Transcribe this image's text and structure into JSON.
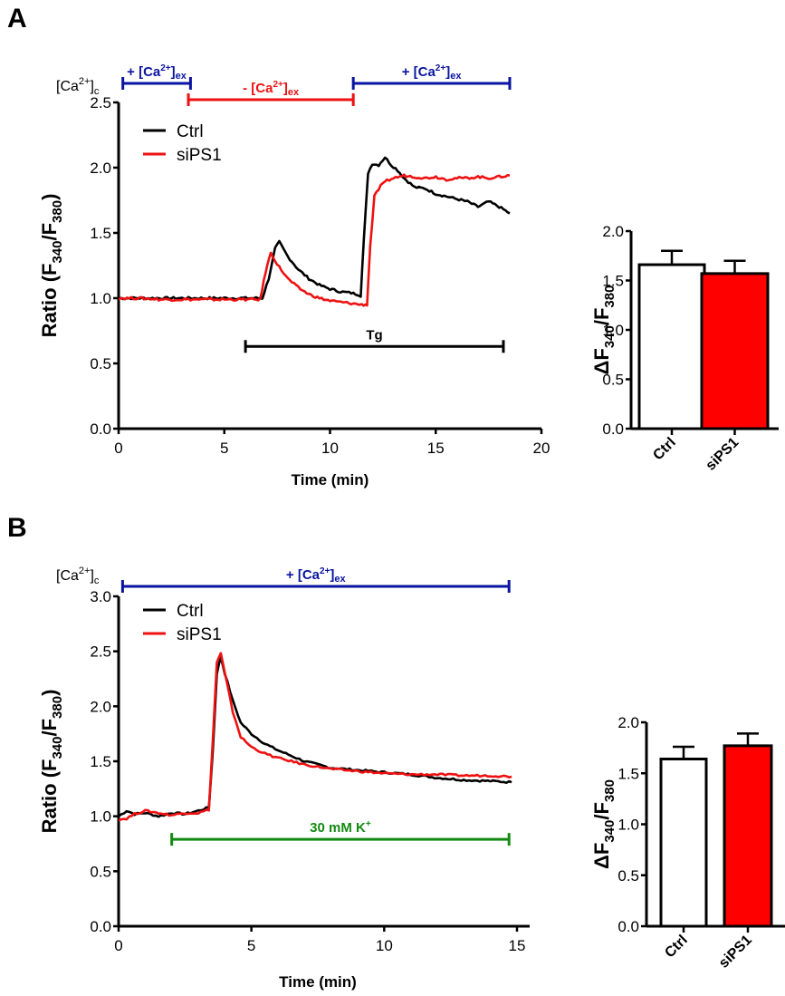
{
  "colors": {
    "ctrl": "#000000",
    "sips1": "#ee1111",
    "bar_ctrl_fill": "#ffffff",
    "bar_sips1_fill": "#ff0000",
    "ca_plus": "#0a14a0",
    "ca_minus": "#ee1111",
    "tg": "#000000",
    "k": "#138a13"
  },
  "chart_data": [
    {
      "id": "A-trace",
      "panel": "A",
      "type": "line",
      "title": "",
      "xlabel": "Time (min)",
      "ylabel": "Ratio (F340/F380)",
      "ylabel_parts": {
        "main": "Ratio (F",
        "sub1": "340",
        "mid": "/F",
        "sub2": "380",
        "end": ")"
      },
      "xlim": [
        0,
        20
      ],
      "ylim": [
        0,
        2.5
      ],
      "xticks": [
        0,
        5,
        10,
        15,
        20
      ],
      "yticks": [
        0.0,
        0.5,
        1.0,
        1.5,
        2.0,
        2.5
      ],
      "xtick_labels": [
        "0",
        "5",
        "10",
        "15",
        "20"
      ],
      "ytick_labels": [
        "0.0",
        "0.5",
        "1.0",
        "1.5",
        "2.0",
        "2.5"
      ],
      "grid": false,
      "legend": {
        "position": "top-left",
        "entries": [
          "Ctrl",
          "siPS1"
        ]
      },
      "side_label": {
        "main": "[Ca",
        "sup": "2+",
        "close": "]",
        "sub": "c"
      },
      "series": [
        {
          "name": "Ctrl",
          "color_key": "ctrl",
          "x": [
            0,
            1,
            2,
            3,
            4,
            5,
            6,
            6.8,
            7.1,
            7.4,
            7.6,
            8.0,
            8.5,
            9.0,
            9.5,
            10.0,
            10.5,
            11.0,
            11.3,
            11.45,
            11.6,
            11.8,
            12.0,
            12.3,
            12.6,
            12.9,
            13.2,
            13.5,
            14.0,
            14.5,
            15.0,
            15.5,
            16.0,
            16.5,
            17.0,
            17.5,
            18.0,
            18.5
          ],
          "y": [
            1.0,
            1.0,
            1.0,
            1.0,
            1.0,
            1.0,
            1.0,
            1.0,
            1.15,
            1.38,
            1.43,
            1.32,
            1.22,
            1.15,
            1.1,
            1.07,
            1.05,
            1.04,
            1.03,
            1.02,
            1.45,
            1.96,
            2.03,
            2.02,
            2.08,
            2.02,
            1.98,
            1.92,
            1.85,
            1.84,
            1.8,
            1.78,
            1.76,
            1.74,
            1.7,
            1.74,
            1.7,
            1.65
          ]
        },
        {
          "name": "siPS1",
          "color_key": "sips1",
          "x": [
            0,
            1,
            2,
            3,
            4,
            5,
            6,
            6.7,
            6.95,
            7.2,
            7.5,
            8.0,
            8.5,
            9.0,
            9.5,
            10.0,
            10.5,
            11.0,
            11.5,
            11.75,
            11.9,
            12.1,
            12.4,
            12.7,
            13.0,
            13.5,
            14.0,
            14.5,
            15.0,
            15.5,
            16.0,
            16.5,
            17.0,
            17.5,
            18.0,
            18.5
          ],
          "y": [
            1.0,
            1.0,
            0.99,
            0.99,
            0.99,
            0.99,
            0.99,
            0.99,
            1.2,
            1.35,
            1.26,
            1.15,
            1.08,
            1.03,
            1.0,
            0.98,
            0.97,
            0.96,
            0.95,
            0.95,
            1.4,
            1.78,
            1.86,
            1.9,
            1.92,
            1.94,
            1.93,
            1.92,
            1.93,
            1.91,
            1.92,
            1.92,
            1.93,
            1.92,
            1.93,
            1.94
          ]
        }
      ],
      "annotations": [
        {
          "id": "ca-plus-1",
          "color_key": "ca_plus",
          "x_start": 0.2,
          "x_end": 3.4,
          "row": "upper",
          "label_main": "+ [Ca",
          "label_sup": "2+",
          "label_close": "]",
          "label_sub": "ex"
        },
        {
          "id": "ca-minus",
          "color_key": "ca_minus",
          "x_start": 3.3,
          "x_end": 11.1,
          "row": "lower",
          "label_main": "- [Ca",
          "label_sup": "2+",
          "label_close": "]",
          "label_sub": "ex"
        },
        {
          "id": "ca-plus-2",
          "color_key": "ca_plus",
          "x_start": 11.1,
          "x_end": 18.5,
          "row": "upper",
          "label_main": "+ [Ca",
          "label_sup": "2+",
          "label_close": "]",
          "label_sub": "ex"
        },
        {
          "id": "tg",
          "color_key": "tg",
          "x_start": 6.0,
          "x_end": 18.2,
          "y": 0.63,
          "label_main": "Tg"
        }
      ]
    },
    {
      "id": "A-bar",
      "panel": "A",
      "type": "bar",
      "categories": [
        "Ctrl",
        "siPS1"
      ],
      "values": [
        1.66,
        1.57
      ],
      "errors": [
        0.14,
        0.13
      ],
      "fill_keys": [
        "bar_ctrl_fill",
        "bar_sips1_fill"
      ],
      "ylabel_parts": {
        "delta": "Δ",
        "main": "F",
        "sub1": "340",
        "mid": "/F",
        "sub2": "380"
      },
      "ylim": [
        0,
        2.0
      ],
      "yticks": [
        0.0,
        0.5,
        1.0,
        1.5,
        2.0
      ],
      "ytick_labels": [
        "0.0",
        "0.5",
        "1.0",
        "1.5",
        "2.0"
      ],
      "grid": false
    },
    {
      "id": "B-trace",
      "panel": "B",
      "type": "line",
      "title": "",
      "xlabel": "Time (min)",
      "ylabel": "Ratio (F340/F380)",
      "ylabel_parts": {
        "main": "Ratio (F",
        "sub1": "340",
        "mid": "/F",
        "sub2": "380",
        "end": ")"
      },
      "xlim": [
        0,
        16
      ],
      "ylim": [
        0,
        3.0
      ],
      "xticks": [
        0,
        5,
        10,
        15
      ],
      "yticks": [
        0.0,
        0.5,
        1.0,
        1.5,
        2.0,
        2.5,
        3.0
      ],
      "xtick_labels": [
        "0",
        "5",
        "10",
        "15"
      ],
      "ytick_labels": [
        "0.0",
        "0.5",
        "1.0",
        "1.5",
        "2.0",
        "2.5",
        "3.0"
      ],
      "grid": false,
      "legend": {
        "position": "top-left",
        "entries": [
          "Ctrl",
          "siPS1"
        ]
      },
      "side_label": {
        "main": "[Ca",
        "sup": "2+",
        "close": "]",
        "sub": "c"
      },
      "series": [
        {
          "name": "Ctrl",
          "color_key": "ctrl",
          "x": [
            0,
            0.3,
            0.6,
            1.0,
            1.5,
            2.0,
            2.5,
            3.0,
            3.4,
            3.55,
            3.7,
            3.85,
            4.0,
            4.3,
            4.6,
            5.0,
            5.5,
            6.0,
            6.5,
            7.0,
            7.5,
            8.0,
            8.5,
            9.0,
            9.5,
            10.0,
            11.0,
            12.0,
            13.0,
            14.0,
            14.8
          ],
          "y": [
            1.0,
            1.05,
            1.02,
            1.03,
            1.0,
            1.03,
            1.02,
            1.05,
            1.08,
            1.6,
            2.3,
            2.45,
            2.3,
            2.05,
            1.85,
            1.75,
            1.66,
            1.6,
            1.55,
            1.5,
            1.47,
            1.44,
            1.43,
            1.42,
            1.41,
            1.4,
            1.38,
            1.35,
            1.33,
            1.32,
            1.31
          ]
        },
        {
          "name": "siPS1",
          "color_key": "sips1",
          "x": [
            0,
            0.3,
            0.6,
            1.0,
            1.5,
            2.0,
            2.5,
            3.0,
            3.4,
            3.55,
            3.7,
            3.85,
            4.0,
            4.3,
            4.6,
            5.0,
            5.5,
            6.0,
            6.5,
            7.0,
            7.5,
            8.0,
            8.5,
            9.0,
            9.5,
            10.0,
            11.0,
            12.0,
            13.0,
            14.0,
            14.8
          ],
          "y": [
            0.97,
            0.98,
            1.02,
            1.05,
            1.03,
            1.01,
            1.03,
            1.03,
            1.06,
            1.7,
            2.4,
            2.48,
            2.3,
            1.95,
            1.72,
            1.63,
            1.57,
            1.53,
            1.5,
            1.47,
            1.45,
            1.43,
            1.42,
            1.41,
            1.4,
            1.39,
            1.38,
            1.38,
            1.37,
            1.37,
            1.36
          ]
        }
      ],
      "annotations": [
        {
          "id": "ca-plus",
          "color_key": "ca_plus",
          "x_start": 0.15,
          "x_end": 14.7,
          "row": "upper",
          "label_main": "+ [Ca",
          "label_sup": "2+",
          "label_close": "]",
          "label_sub": "ex"
        },
        {
          "id": "k",
          "color_key": "k",
          "x_start": 2.0,
          "x_end": 14.7,
          "y": 0.79,
          "label_main": "30 mM K",
          "label_sup": "+"
        }
      ]
    },
    {
      "id": "B-bar",
      "panel": "B",
      "type": "bar",
      "categories": [
        "Ctrl",
        "siPS1"
      ],
      "values": [
        1.64,
        1.77
      ],
      "errors": [
        0.12,
        0.12
      ],
      "fill_keys": [
        "bar_ctrl_fill",
        "bar_sips1_fill"
      ],
      "ylabel_parts": {
        "delta": "Δ",
        "main": "F",
        "sub1": "340",
        "mid": "/F",
        "sub2": "380"
      },
      "ylim": [
        0,
        2.0
      ],
      "yticks": [
        0.0,
        0.5,
        1.0,
        1.5,
        2.0
      ],
      "ytick_labels": [
        "0.0",
        "0.5",
        "1.0",
        "1.5",
        "2.0"
      ],
      "grid": false
    }
  ],
  "panels": {
    "A": {
      "letter": "A"
    },
    "B": {
      "letter": "B"
    }
  }
}
